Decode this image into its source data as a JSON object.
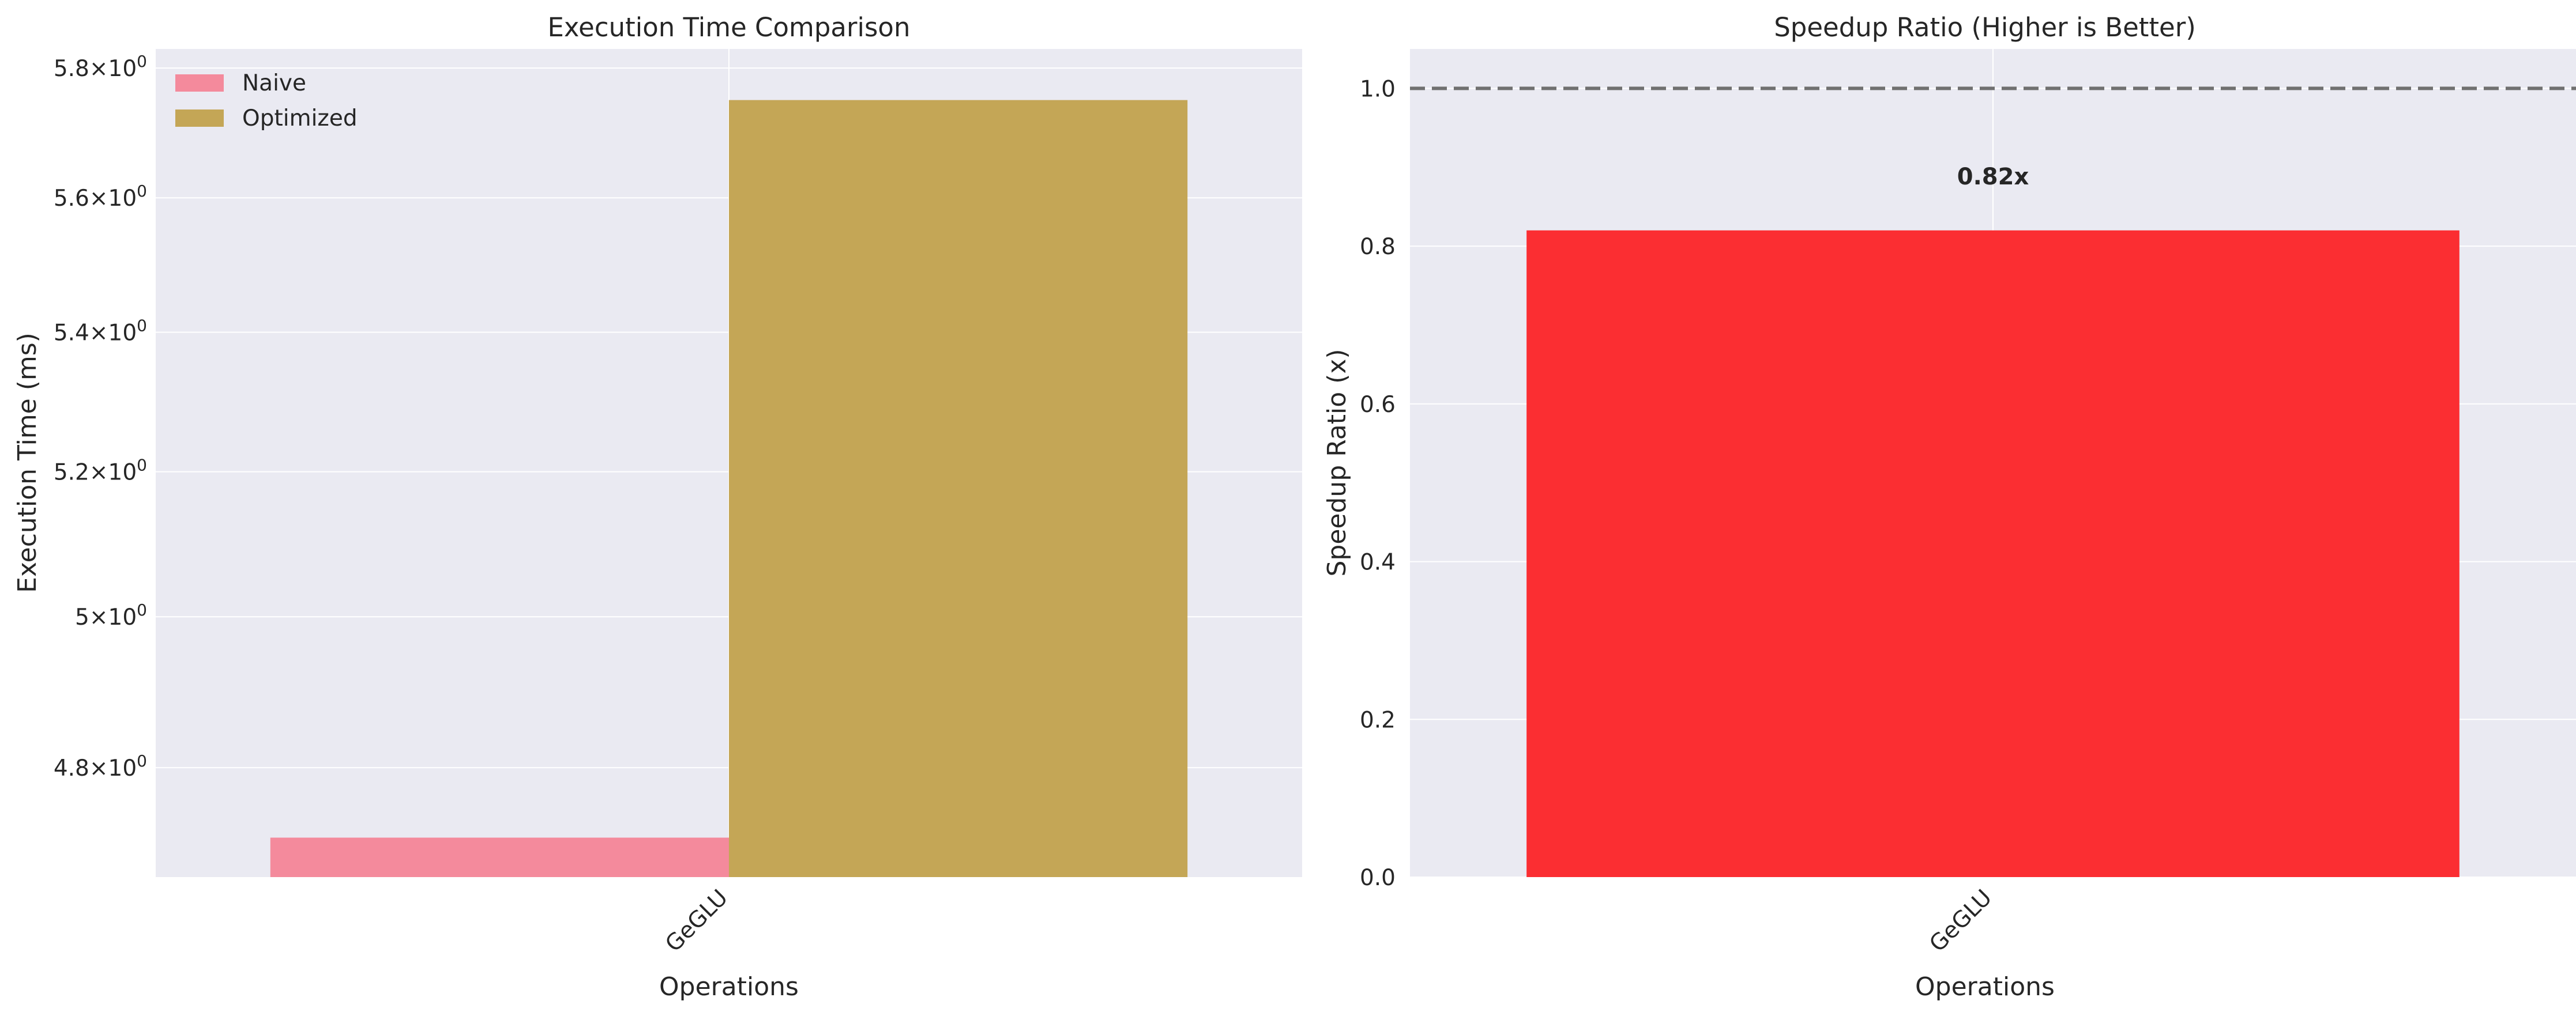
{
  "chart_data": [
    {
      "type": "bar",
      "title": "Execution Time Comparison",
      "xlabel": "Operations",
      "ylabel": "Execution Time (ms)",
      "categories": [
        "GeGLU"
      ],
      "yscale": "log",
      "ylim": [
        4.66,
        5.83
      ],
      "yticks": [
        {
          "value": 4.8,
          "label": "4.8",
          "base": "10",
          "exp": "0"
        },
        {
          "value": 5.0,
          "label": "5",
          "base": "10",
          "exp": "0"
        },
        {
          "value": 5.2,
          "label": "5.2",
          "base": "10",
          "exp": "0"
        },
        {
          "value": 5.4,
          "label": "5.4",
          "base": "10",
          "exp": "0"
        },
        {
          "value": 5.6,
          "label": "5.6",
          "base": "10",
          "exp": "0"
        },
        {
          "value": 5.8,
          "label": "5.8",
          "base": "10",
          "exp": "0"
        }
      ],
      "times_sign": "×",
      "grid": true,
      "legend_position": "upper-left",
      "series": [
        {
          "name": "Naive",
          "values": [
            4.71
          ],
          "color": "#f48a9c"
        },
        {
          "name": "Optimized",
          "values": [
            5.75
          ],
          "color": "#c4a656"
        }
      ]
    },
    {
      "type": "bar",
      "title": "Speedup Ratio (Higher is Better)",
      "xlabel": "Operations",
      "ylabel": "Speedup Ratio (x)",
      "categories": [
        "GeGLU"
      ],
      "ylim": [
        0,
        1.05
      ],
      "yticks": [
        {
          "value": 0.0,
          "label": "0.0"
        },
        {
          "value": 0.2,
          "label": "0.2"
        },
        {
          "value": 0.4,
          "label": "0.4"
        },
        {
          "value": 0.6,
          "label": "0.6"
        },
        {
          "value": 0.8,
          "label": "0.8"
        },
        {
          "value": 1.0,
          "label": "1.0"
        }
      ],
      "grid": true,
      "values": [
        0.82
      ],
      "bar_color": "#fb2e32",
      "data_labels": [
        "0.82x"
      ],
      "reference_line": {
        "value": 1.0,
        "style": "dashed",
        "color": "#707070"
      }
    }
  ],
  "colors": {
    "plot_background": "#eaeaf2",
    "grid": "#ffffff",
    "text": "#262626"
  }
}
